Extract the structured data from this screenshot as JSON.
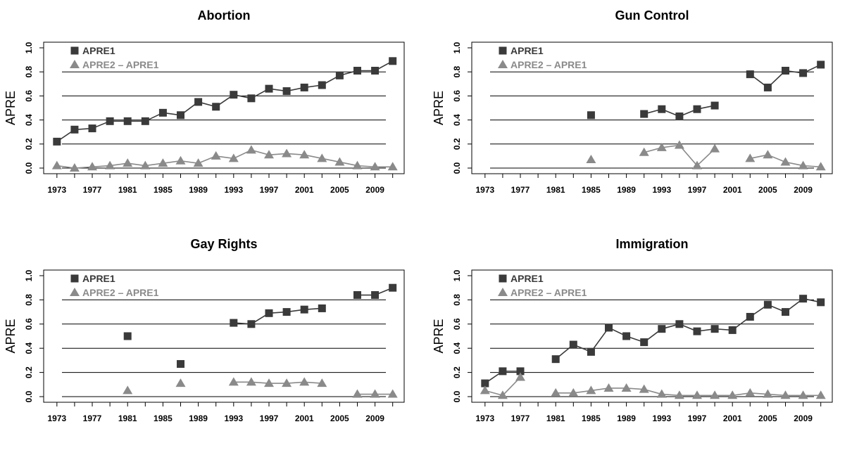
{
  "colors": {
    "series1": "#3a3a3a",
    "series2": "#8a8a8a",
    "axis": "#000000",
    "grid": "#000000"
  },
  "chart_data": [
    {
      "type": "line",
      "title": "Abortion",
      "xlabel": "",
      "ylabel": "APRE",
      "ylim": [
        0,
        1
      ],
      "yticks": [
        "0.0",
        "0.2",
        "0.4",
        "0.6",
        "0.8",
        "1.0"
      ],
      "xticks": [
        "1973",
        "1977",
        "1981",
        "1985",
        "1989",
        "1993",
        "1997",
        "2001",
        "2005",
        "2009"
      ],
      "gridlines_y": [
        0,
        0.2,
        0.4,
        0.6,
        0.8
      ],
      "legend": "top-left",
      "x": [
        1973,
        1975,
        1977,
        1979,
        1981,
        1983,
        1985,
        1987,
        1989,
        1991,
        1993,
        1995,
        1997,
        1999,
        2001,
        2003,
        2005,
        2007,
        2009,
        2011
      ],
      "series": [
        {
          "name": "APRE1",
          "marker": "square",
          "values": [
            0.22,
            0.32,
            0.33,
            0.39,
            0.39,
            0.39,
            0.46,
            0.44,
            0.55,
            0.51,
            0.61,
            0.58,
            0.66,
            0.64,
            0.67,
            0.69,
            0.77,
            0.81,
            0.81,
            0.89
          ]
        },
        {
          "name": "APRE2 – APRE1",
          "marker": "triangle",
          "values": [
            0.02,
            0.0,
            0.01,
            0.02,
            0.04,
            0.02,
            0.04,
            0.06,
            0.04,
            0.1,
            0.08,
            0.15,
            0.11,
            0.12,
            0.11,
            0.08,
            0.05,
            0.02,
            0.01,
            0.01
          ]
        }
      ]
    },
    {
      "type": "line",
      "title": "Gun Control",
      "xlabel": "",
      "ylabel": "APRE",
      "ylim": [
        0,
        1
      ],
      "yticks": [
        "0.0",
        "0.2",
        "0.4",
        "0.6",
        "0.8",
        "1.0"
      ],
      "xticks": [
        "1973",
        "1977",
        "1981",
        "1985",
        "1989",
        "1993",
        "1997",
        "2001",
        "2005",
        "2009"
      ],
      "gridlines_y": [
        0,
        0.2,
        0.4,
        0.6,
        0.8
      ],
      "legend": "top-left",
      "x": [
        1973,
        1975,
        1977,
        1979,
        1981,
        1983,
        1985,
        1987,
        1989,
        1991,
        1993,
        1995,
        1997,
        1999,
        2001,
        2003,
        2005,
        2007,
        2009,
        2011
      ],
      "series": [
        {
          "name": "APRE1",
          "marker": "square",
          "values": [
            null,
            null,
            null,
            null,
            null,
            null,
            0.44,
            null,
            null,
            0.45,
            0.49,
            0.43,
            0.49,
            0.52,
            null,
            0.78,
            0.67,
            0.81,
            0.79,
            0.86
          ]
        },
        {
          "name": "APRE2 – APRE1",
          "marker": "triangle",
          "values": [
            null,
            null,
            null,
            null,
            null,
            null,
            0.07,
            null,
            null,
            0.13,
            0.17,
            0.19,
            0.02,
            0.16,
            null,
            0.08,
            0.11,
            0.05,
            0.02,
            0.01
          ]
        }
      ]
    },
    {
      "type": "line",
      "title": "Gay Rights",
      "xlabel": "",
      "ylabel": "APRE",
      "ylim": [
        0,
        1
      ],
      "yticks": [
        "0.0",
        "0.2",
        "0.4",
        "0.6",
        "0.8",
        "1.0"
      ],
      "xticks": [
        "1973",
        "1977",
        "1981",
        "1985",
        "1989",
        "1993",
        "1997",
        "2001",
        "2005",
        "2009"
      ],
      "gridlines_y": [
        0,
        0.2,
        0.4,
        0.6,
        0.8
      ],
      "legend": "top-left",
      "x": [
        1973,
        1975,
        1977,
        1979,
        1981,
        1983,
        1985,
        1987,
        1989,
        1991,
        1993,
        1995,
        1997,
        1999,
        2001,
        2003,
        2005,
        2007,
        2009,
        2011
      ],
      "series": [
        {
          "name": "APRE1",
          "marker": "square",
          "values": [
            null,
            null,
            null,
            null,
            0.5,
            null,
            null,
            0.27,
            null,
            null,
            0.61,
            0.6,
            0.69,
            0.7,
            0.72,
            0.73,
            null,
            0.84,
            0.84,
            0.9
          ]
        },
        {
          "name": "APRE2 – APRE1",
          "marker": "triangle",
          "values": [
            null,
            null,
            null,
            null,
            0.05,
            null,
            null,
            0.11,
            null,
            null,
            0.12,
            0.12,
            0.11,
            0.11,
            0.12,
            0.11,
            null,
            0.02,
            0.02,
            0.02
          ]
        }
      ]
    },
    {
      "type": "line",
      "title": "Immigration",
      "xlabel": "",
      "ylabel": "APRE",
      "ylim": [
        0,
        1
      ],
      "yticks": [
        "0.0",
        "0.2",
        "0.4",
        "0.6",
        "0.8",
        "1.0"
      ],
      "xticks": [
        "1973",
        "1977",
        "1981",
        "1985",
        "1989",
        "1993",
        "1997",
        "2001",
        "2005",
        "2009"
      ],
      "gridlines_y": [
        0,
        0.2,
        0.4,
        0.6,
        0.8
      ],
      "legend": "top-left",
      "x": [
        1973,
        1975,
        1977,
        1979,
        1981,
        1983,
        1985,
        1987,
        1989,
        1991,
        1993,
        1995,
        1997,
        1999,
        2001,
        2003,
        2005,
        2007,
        2009,
        2011
      ],
      "series": [
        {
          "name": "APRE1",
          "marker": "square",
          "values": [
            0.11,
            0.21,
            0.21,
            null,
            0.31,
            0.43,
            0.37,
            0.57,
            0.5,
            0.45,
            0.56,
            0.6,
            0.54,
            0.56,
            0.55,
            0.66,
            0.76,
            0.7,
            0.81,
            0.78
          ]
        },
        {
          "name": "APRE2 – APRE1",
          "marker": "triangle",
          "values": [
            0.05,
            0.01,
            0.16,
            null,
            0.03,
            0.03,
            0.05,
            0.07,
            0.07,
            0.06,
            0.02,
            0.01,
            0.01,
            0.01,
            0.01,
            0.03,
            0.02,
            0.01,
            0.01,
            0.01
          ]
        }
      ]
    }
  ]
}
